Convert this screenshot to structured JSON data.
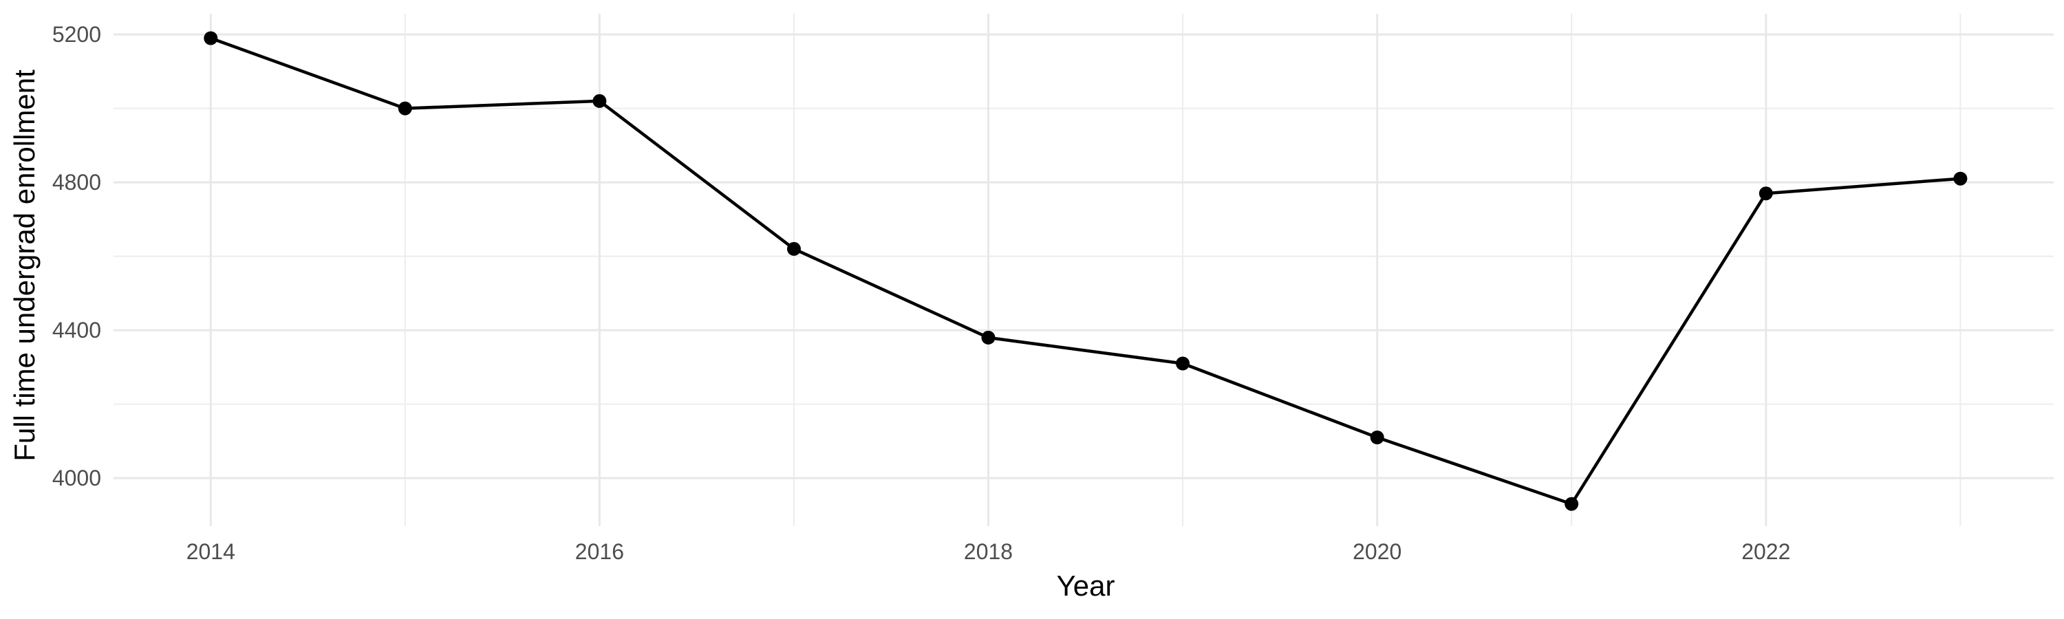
{
  "chart_data": {
    "type": "line",
    "xlabel": "Year",
    "ylabel": "Full time undergrad enrollment",
    "series": [
      {
        "name": "Full time undergrad enrollment",
        "x": [
          2014,
          2015,
          2016,
          2017,
          2018,
          2019,
          2020,
          2021,
          2022,
          2023
        ],
        "values": [
          5190,
          5000,
          5020,
          4620,
          4380,
          4310,
          4110,
          3930,
          4770,
          4810
        ]
      }
    ],
    "x_ticks": [
      2014,
      2016,
      2018,
      2020,
      2022
    ],
    "x_minor_gridlines": [
      2015,
      2017,
      2019,
      2021,
      2023
    ],
    "y_ticks": [
      4000,
      4400,
      4800,
      5200
    ],
    "y_minor_gridlines": [
      4200,
      4600,
      5000
    ],
    "xlim": [
      2013.5,
      2023.48
    ],
    "ylim": [
      3870,
      5256
    ],
    "grid": "major-and-minor",
    "legend": "none",
    "marker": "filled-circle",
    "colors": {
      "line": "#000000",
      "point": "#000000",
      "grid_major": "#E8E8E8",
      "grid_minor": "#EDEDED",
      "tick_label": "#4D4D4D",
      "axis_title": "#000000",
      "background": "#FFFFFF"
    }
  }
}
